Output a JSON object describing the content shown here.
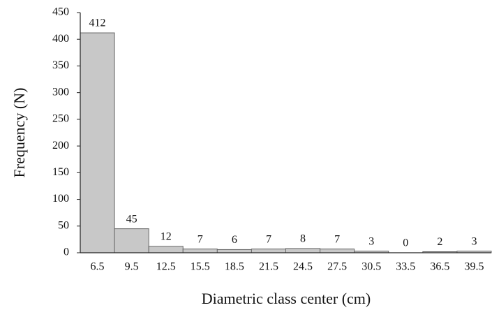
{
  "chart_data": {
    "type": "bar",
    "x_label": "Diametric class center (cm)",
    "y_label": "Frequency (N)",
    "categories": [
      "6.5",
      "9.5",
      "12.5",
      "15.5",
      "18.5",
      "21.5",
      "24.5",
      "27.5",
      "30.5",
      "33.5",
      "36.5",
      "39.5"
    ],
    "values": [
      412,
      45,
      12,
      7,
      6,
      7,
      8,
      7,
      3,
      0,
      2,
      3
    ],
    "color": "#c8c8c8",
    "ylim": [
      0,
      450
    ],
    "yticks": [
      0,
      50,
      100,
      150,
      200,
      250,
      300,
      350,
      400,
      450
    ],
    "grid": false
  }
}
